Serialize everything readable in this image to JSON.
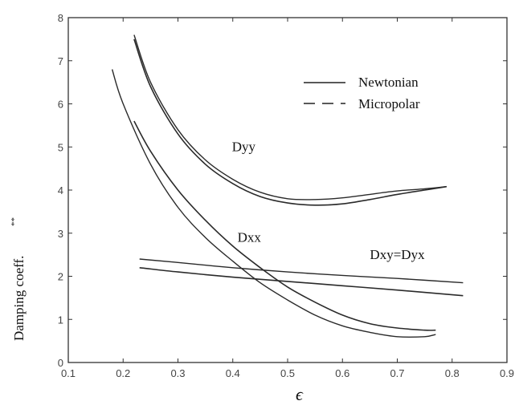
{
  "chart_data": {
    "type": "line",
    "xlabel": "ϵ",
    "ylabel": "Damping coeff.",
    "ylabel_superscript": "**",
    "xlim": [
      0.1,
      0.9
    ],
    "ylim": [
      0,
      8
    ],
    "x_ticks": [
      "0.1",
      "0.2",
      "0.3",
      "0.4",
      "0.5",
      "0.6",
      "0.7",
      "0.8",
      "0.9"
    ],
    "y_ticks": [
      "0",
      "1",
      "2",
      "3",
      "4",
      "5",
      "6",
      "7",
      "8"
    ],
    "legend": {
      "placement": "top-right",
      "entries": [
        {
          "label": "Newtonian",
          "style": "solid"
        },
        {
          "label": "Micropolar",
          "style": "dashed"
        }
      ]
    },
    "annotations": [
      {
        "text": "Dyy",
        "x": 0.42,
        "y": 4.9
      },
      {
        "text": "Dxx",
        "x": 0.43,
        "y": 2.8
      },
      {
        "text": "Dxy=Dyx",
        "x": 0.7,
        "y": 2.4
      }
    ],
    "series": [
      {
        "name": "Dyy Newtonian",
        "style": "solid",
        "x": [
          0.22,
          0.25,
          0.3,
          0.35,
          0.4,
          0.45,
          0.5,
          0.55,
          0.6,
          0.65,
          0.7,
          0.75,
          0.79
        ],
        "y": [
          7.6,
          6.5,
          5.4,
          4.7,
          4.25,
          3.95,
          3.8,
          3.78,
          3.82,
          3.9,
          3.98,
          4.03,
          4.08
        ]
      },
      {
        "name": "Dyy Micropolar",
        "style": "dashed",
        "x": [
          0.22,
          0.25,
          0.3,
          0.35,
          0.4,
          0.45,
          0.5,
          0.55,
          0.6,
          0.65,
          0.7,
          0.75,
          0.79
        ],
        "y": [
          7.5,
          6.4,
          5.3,
          4.6,
          4.15,
          3.85,
          3.7,
          3.65,
          3.68,
          3.78,
          3.9,
          4.0,
          4.08
        ]
      },
      {
        "name": "Dxx Newtonian",
        "style": "solid",
        "x": [
          0.18,
          0.2,
          0.25,
          0.3,
          0.35,
          0.4,
          0.45,
          0.5,
          0.55,
          0.6,
          0.65,
          0.7,
          0.75,
          0.77
        ],
        "y": [
          6.8,
          6.0,
          4.6,
          3.6,
          2.9,
          2.35,
          1.85,
          1.45,
          1.1,
          0.85,
          0.7,
          0.6,
          0.6,
          0.65
        ]
      },
      {
        "name": "Dxx Micropolar",
        "style": "dashed",
        "x": [
          0.22,
          0.25,
          0.3,
          0.35,
          0.4,
          0.45,
          0.5,
          0.55,
          0.6,
          0.65,
          0.7,
          0.75,
          0.77
        ],
        "y": [
          5.6,
          4.9,
          4.0,
          3.3,
          2.7,
          2.2,
          1.75,
          1.4,
          1.1,
          0.9,
          0.8,
          0.75,
          0.75
        ]
      },
      {
        "name": "Dxy Newtonian",
        "style": "solid",
        "x": [
          0.23,
          0.3,
          0.4,
          0.5,
          0.6,
          0.7,
          0.82
        ],
        "y": [
          2.4,
          2.32,
          2.2,
          2.1,
          2.02,
          1.95,
          1.85
        ]
      },
      {
        "name": "Dxy Micropolar",
        "style": "dashed",
        "x": [
          0.23,
          0.3,
          0.4,
          0.5,
          0.6,
          0.7,
          0.82
        ],
        "y": [
          2.2,
          2.1,
          1.98,
          1.88,
          1.78,
          1.68,
          1.55
        ]
      }
    ]
  }
}
